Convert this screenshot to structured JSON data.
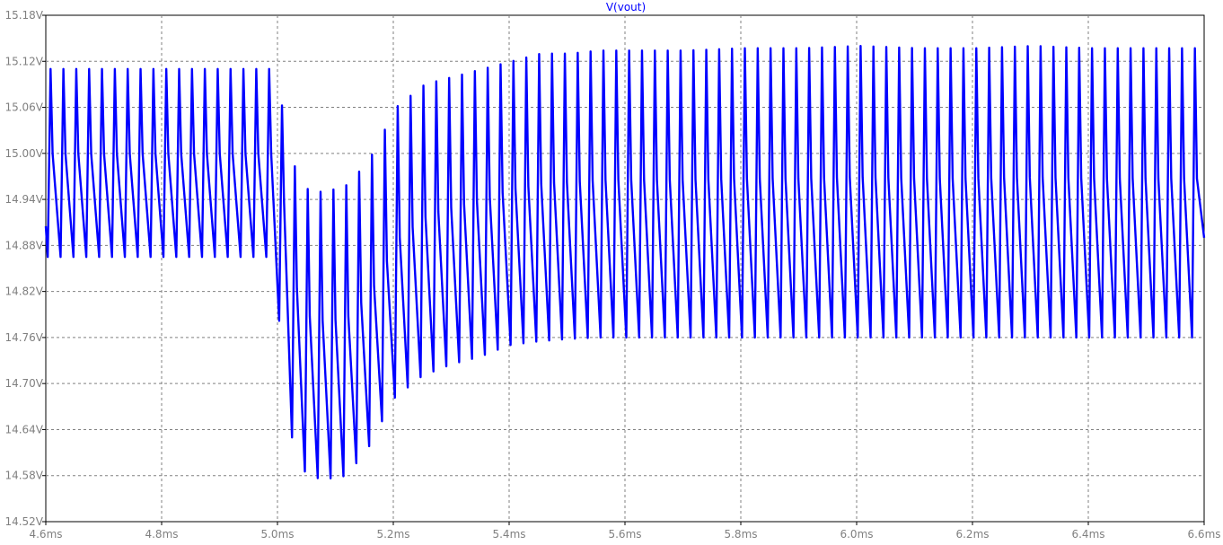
{
  "chart_data": {
    "type": "line",
    "title": "V(vout)",
    "xlabel": "",
    "ylabel": "",
    "xlim": [
      4.6,
      6.6
    ],
    "ylim": [
      14.52,
      15.18
    ],
    "x_ticks": [
      4.6,
      4.8,
      5.0,
      5.2,
      5.4,
      5.6,
      5.8,
      6.0,
      6.2,
      6.4,
      6.6
    ],
    "x_tick_labels": [
      "4.6ms",
      "4.8ms",
      "5.0ms",
      "5.2ms",
      "5.4ms",
      "5.6ms",
      "5.8ms",
      "6.0ms",
      "6.2ms",
      "6.4ms",
      "6.6ms"
    ],
    "y_ticks": [
      14.52,
      14.58,
      14.64,
      14.7,
      14.76,
      14.82,
      14.88,
      14.94,
      15.0,
      15.06,
      15.12,
      15.18
    ],
    "y_tick_labels": [
      "14.52V",
      "14.58V",
      "14.64V",
      "14.70V",
      "14.76V",
      "14.82V",
      "14.88V",
      "14.94V",
      "15.00V",
      "15.06V",
      "15.12V",
      "15.18V"
    ],
    "grid": true,
    "series": [
      {
        "name": "V(vout)",
        "color": "#0000ff",
        "period_ms": 0.0222,
        "envelope": {
          "x": [
            4.6,
            4.995,
            5.005,
            5.02,
            5.05,
            5.08,
            5.12,
            5.16,
            5.2,
            5.25,
            5.3,
            5.35,
            5.4,
            5.45,
            5.5,
            5.55,
            5.6,
            5.7,
            5.8,
            5.9,
            6.0,
            6.1,
            6.2,
            6.3,
            6.4,
            6.5,
            6.6
          ],
          "max": [
            15.11,
            15.11,
            15.05,
            14.99,
            14.95,
            14.95,
            14.96,
            15.0,
            15.06,
            15.09,
            15.1,
            15.11,
            15.12,
            15.13,
            15.13,
            15.134,
            15.134,
            15.134,
            15.137,
            15.137,
            15.14,
            15.137,
            15.137,
            15.14,
            15.137,
            15.137,
            15.137
          ],
          "min": [
            14.865,
            14.865,
            14.76,
            14.64,
            14.58,
            14.575,
            14.58,
            14.62,
            14.68,
            14.71,
            14.725,
            14.735,
            14.75,
            14.755,
            14.758,
            14.76,
            14.76,
            14.76,
            14.76,
            14.76,
            14.76,
            14.76,
            14.76,
            14.76,
            14.76,
            14.76,
            14.76
          ]
        }
      }
    ]
  }
}
